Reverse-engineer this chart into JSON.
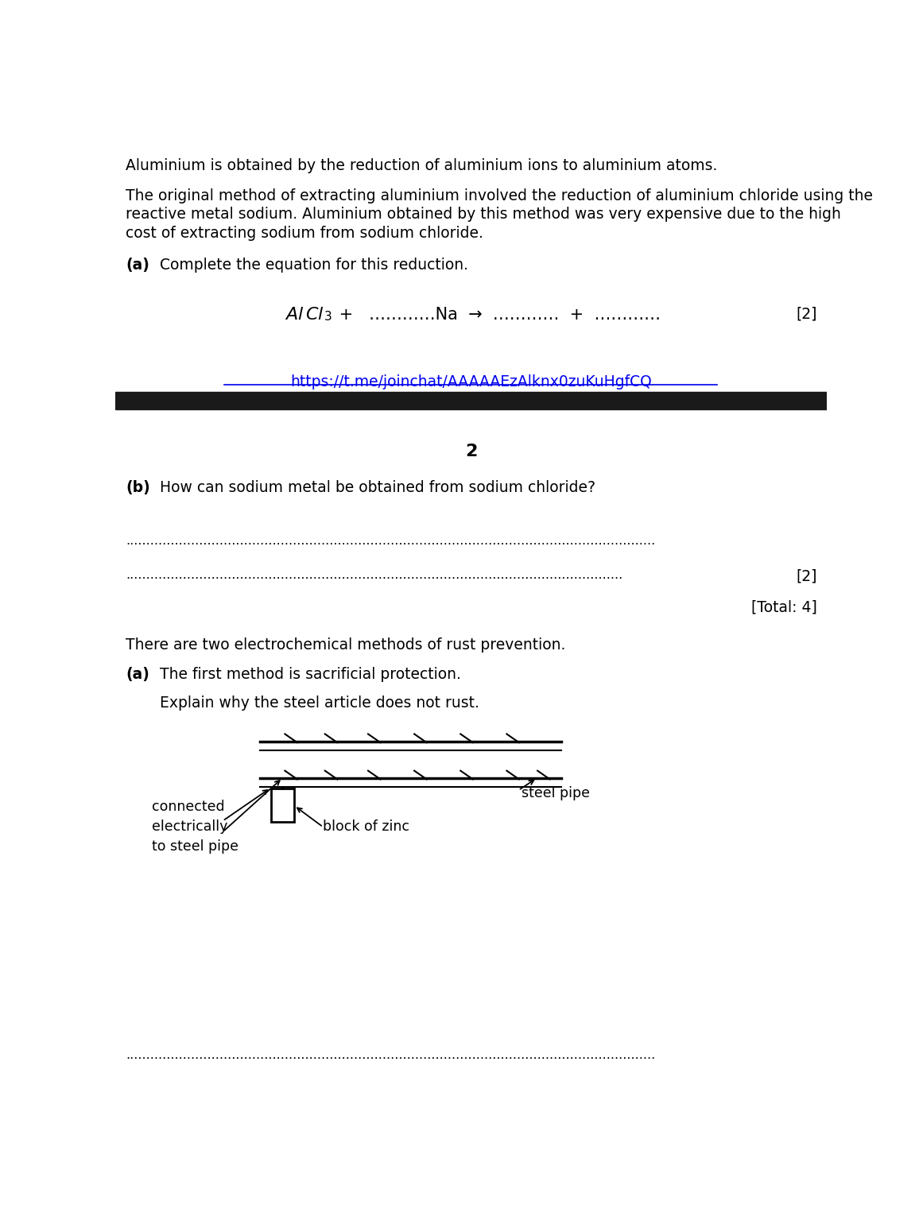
{
  "bg_color": "#ffffff",
  "text_color": "#000000",
  "link_color": "#0000EE",
  "paragraph1": "Aluminium is obtained by the reduction of aluminium ions to aluminium atoms.",
  "paragraph2_line1": "The original method of extracting aluminium involved the reduction of aluminium chloride using the",
  "paragraph2_line2": "reactive metal sodium. Aluminium obtained by this method was very expensive due to the high",
  "paragraph2_line3": "cost of extracting sodium from sodium chloride.",
  "part_a_label": "(a)",
  "part_a_text": "Complete the equation for this reduction.",
  "equation_rest": " +   …………Na  →  …………  +  …………",
  "mark2": "[2]",
  "link_text": "https://t.me/joinchat/AAAAAEzAlknx0zuKuHgfCQ",
  "page_number": "2",
  "part_b_label": "(b)",
  "part_b_text": "How can sodium metal be obtained from sodium chloride?",
  "mark2b": "[2]",
  "total_mark": "[Total: 4]",
  "section2_text": "There are two electrochemical methods of rust prevention.",
  "part2a_label": "(a)",
  "part2a_text": "The first method is sacrificial protection.",
  "explain_text": "Explain why the steel article does not rust.",
  "label_connected": "connected\nelectrically\nto steel pipe",
  "label_block": "block of zinc",
  "label_steel": "steel pipe"
}
